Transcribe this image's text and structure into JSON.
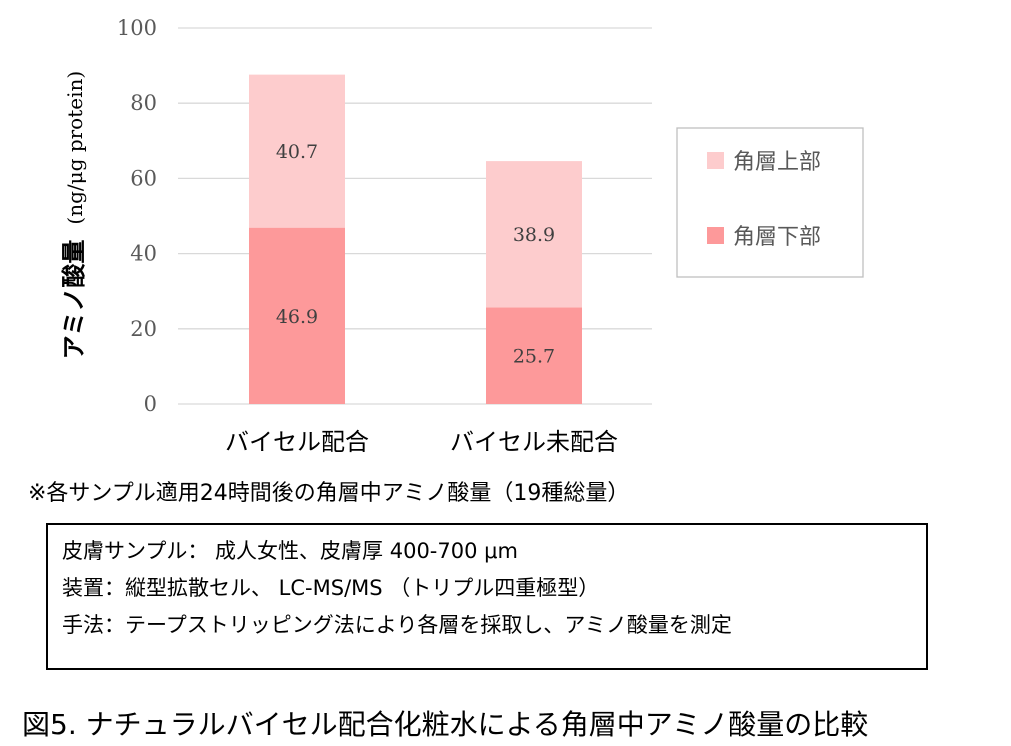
{
  "chart_data": {
    "type": "bar",
    "stacked": true,
    "categories": [
      "バイセル配合",
      "バイセル未配合"
    ],
    "series": [
      {
        "name": "角層下部",
        "values": [
          46.9,
          25.7
        ],
        "color": "#fd999a"
      },
      {
        "name": "角層上部",
        "values": [
          40.7,
          38.9
        ],
        "color": "#fdcccd"
      }
    ],
    "ylabel": "アミノ酸量 (ng/μg protein)",
    "ylabel_main": "アミノ酸量",
    "ylabel_unit": "(ng/μg protein)",
    "ylim": [
      0,
      100
    ],
    "yticks": [
      0,
      20,
      40,
      60,
      80,
      100
    ],
    "grid": true,
    "legend": "right"
  },
  "note": "※各サンプル適用24時間後の角層中アミノ酸量（19種総量）",
  "info_box": {
    "lines": [
      "皮膚サンプル： 成人女性、皮膚厚 400-700 μm",
      "装置：縦型拡散セル、 LC-MS/MS （トリプル四重極型）",
      "手法：テープストリッピング法により各層を採取し、アミノ酸量を測定"
    ]
  },
  "caption": "図5. ナチュラルバイセル配合化粧水による角層中アミノ酸量の比較"
}
